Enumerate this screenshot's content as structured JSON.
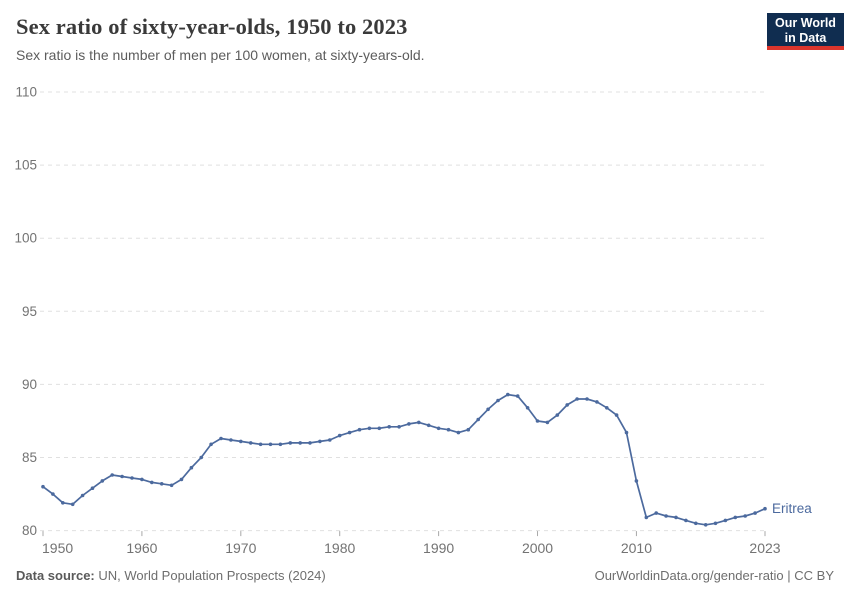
{
  "header": {
    "title": "Sex ratio of sixty-year-olds, 1950 to 2023",
    "subtitle": "Sex ratio is the number of men per 100 women, at sixty-years-old."
  },
  "logo": {
    "line1": "Our World",
    "line2": "in Data",
    "background": "#102d50",
    "accent": "#dc352c"
  },
  "chart_data": {
    "type": "line",
    "title": "Sex ratio of sixty-year-olds, 1950 to 2023",
    "xlabel": "",
    "ylabel": "",
    "ylim": [
      80,
      110
    ],
    "yticks": [
      80,
      85,
      90,
      95,
      100,
      105,
      110
    ],
    "xticks": [
      1950,
      1960,
      1970,
      1980,
      1990,
      2000,
      2010,
      2023
    ],
    "grid": "dashed-horizontal",
    "legend_position": "end-of-line",
    "x": [
      1950,
      1951,
      1952,
      1953,
      1954,
      1955,
      1956,
      1957,
      1958,
      1959,
      1960,
      1961,
      1962,
      1963,
      1964,
      1965,
      1966,
      1967,
      1968,
      1969,
      1970,
      1971,
      1972,
      1973,
      1974,
      1975,
      1976,
      1977,
      1978,
      1979,
      1980,
      1981,
      1982,
      1983,
      1984,
      1985,
      1986,
      1987,
      1988,
      1989,
      1990,
      1991,
      1992,
      1993,
      1994,
      1995,
      1996,
      1997,
      1998,
      1999,
      2000,
      2001,
      2002,
      2003,
      2004,
      2005,
      2006,
      2007,
      2008,
      2009,
      2010,
      2011,
      2012,
      2013,
      2014,
      2015,
      2016,
      2017,
      2018,
      2019,
      2020,
      2021,
      2022,
      2023
    ],
    "series": [
      {
        "name": "Eritrea",
        "color": "#4c6a9e",
        "values": [
          83.0,
          82.5,
          81.9,
          81.8,
          82.4,
          82.9,
          83.4,
          83.8,
          83.7,
          83.6,
          83.5,
          83.3,
          83.2,
          83.1,
          83.5,
          84.3,
          85.0,
          85.9,
          86.3,
          86.2,
          86.1,
          86.0,
          85.9,
          85.9,
          85.9,
          86.0,
          86.0,
          86.0,
          86.1,
          86.2,
          86.5,
          86.7,
          86.9,
          87.0,
          87.0,
          87.1,
          87.1,
          87.3,
          87.4,
          87.2,
          87.0,
          86.9,
          86.7,
          86.9,
          87.6,
          88.3,
          88.9,
          89.3,
          89.2,
          88.4,
          87.5,
          87.4,
          87.9,
          88.6,
          89.0,
          89.0,
          88.8,
          88.4,
          87.9,
          86.7,
          83.4,
          80.9,
          81.2,
          81.0,
          80.9,
          80.7,
          80.5,
          80.4,
          80.5,
          80.7,
          80.9,
          81.0,
          81.2,
          81.5
        ]
      }
    ],
    "colors": {
      "grid": "#e0e0e0",
      "axis_text": "#737373",
      "tick_mark": "#a8a8a8"
    }
  },
  "footer": {
    "source_label": "Data source:",
    "source_text": " UN, World Population Prospects (2024)",
    "link_text": "OurWorldinData.org/gender-ratio | CC BY"
  }
}
